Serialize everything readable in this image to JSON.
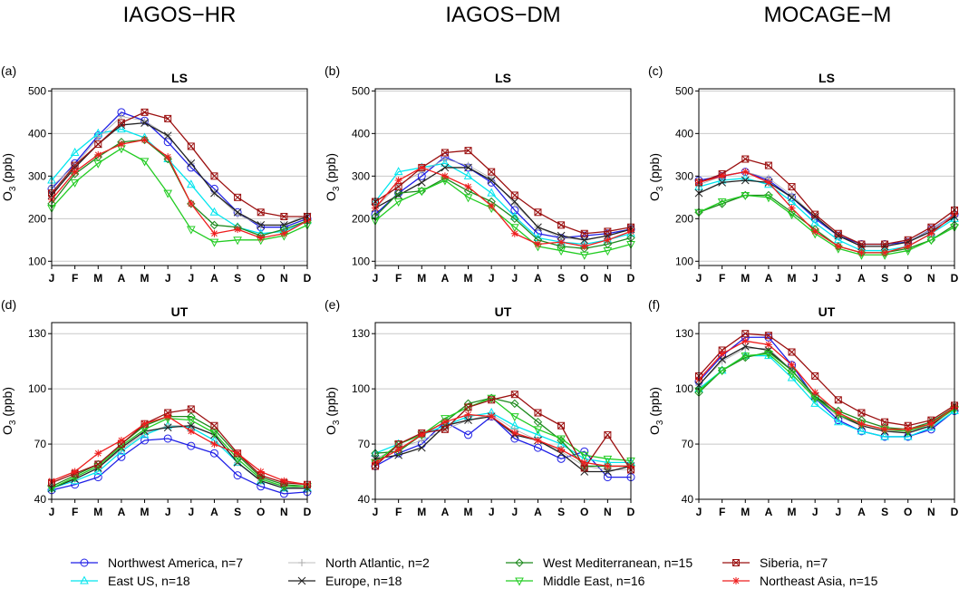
{
  "column_titles": [
    "IAGOS−HR",
    "IAGOS−DM",
    "MOCAGE−M"
  ],
  "legend": [
    {
      "key": "nwa",
      "label": "Northwest America, n=7",
      "color": "#1f1fe6",
      "marker": "circle"
    },
    {
      "key": "eus",
      "label": "East US, n=18",
      "color": "#00e5ee",
      "marker": "triangle-up"
    },
    {
      "key": "nat",
      "label": "North Atlantic, n=2",
      "color": "#aaaaaa",
      "marker": "plus"
    },
    {
      "key": "eur",
      "label": "Europe, n=18",
      "color": "#222222",
      "marker": "x"
    },
    {
      "key": "wmed",
      "label": "West Mediterranean, n=15",
      "color": "#1e8a1e",
      "marker": "diamond"
    },
    {
      "key": "mde",
      "label": "Middle East, n=16",
      "color": "#22cc22",
      "marker": "triangle-down"
    },
    {
      "key": "sib",
      "label": "Siberia, n=7",
      "color": "#9b1010",
      "marker": "square-x"
    },
    {
      "key": "nea",
      "label": "Northeast Asia, n=15",
      "color": "#ee1c1c",
      "marker": "star"
    }
  ],
  "chart_data": [
    {
      "type": "line",
      "panel": "(a)",
      "title": "LS",
      "ylabel": "O3 (ppb)",
      "ylabel_main": "O",
      "ylabel_sub": "3",
      "ylabel_rest": " (ppb)",
      "x": [
        "J",
        "F",
        "M",
        "A",
        "M",
        "J",
        "J",
        "A",
        "S",
        "O",
        "N",
        "D"
      ],
      "ylim": [
        90,
        505
      ],
      "yticks": [
        100,
        200,
        300,
        400,
        500
      ],
      "series": [
        {
          "key": "nwa",
          "values": [
            270,
            330,
            395,
            450,
            430,
            380,
            320,
            270,
            215,
            180,
            180,
            200
          ]
        },
        {
          "key": "eus",
          "values": [
            290,
            355,
            400,
            410,
            390,
            340,
            280,
            215,
            180,
            165,
            170,
            195
          ]
        },
        {
          "key": "nat",
          "values": [
            275,
            325,
            390,
            440,
            430,
            395,
            330,
            260,
            210,
            185,
            185,
            210
          ]
        },
        {
          "key": "eur",
          "values": [
            255,
            320,
            375,
            420,
            425,
            395,
            330,
            260,
            215,
            185,
            185,
            205
          ]
        },
        {
          "key": "wmed",
          "values": [
            235,
            305,
            345,
            380,
            385,
            340,
            235,
            185,
            180,
            160,
            175,
            195
          ]
        },
        {
          "key": "mde",
          "values": [
            225,
            285,
            330,
            365,
            335,
            260,
            175,
            145,
            150,
            150,
            160,
            185
          ]
        },
        {
          "key": "sib",
          "values": [
            260,
            325,
            375,
            425,
            450,
            435,
            370,
            300,
            250,
            215,
            205,
            205
          ]
        },
        {
          "key": "nea",
          "values": [
            245,
            310,
            350,
            375,
            385,
            345,
            235,
            165,
            175,
            155,
            165,
            195
          ]
        }
      ]
    },
    {
      "type": "line",
      "panel": "(b)",
      "title": "LS",
      "ylabel": "O3 (ppb)",
      "ylabel_main": "O",
      "ylabel_sub": "3",
      "ylabel_rest": " (ppb)",
      "x": [
        "J",
        "F",
        "M",
        "A",
        "M",
        "J",
        "J",
        "A",
        "S",
        "O",
        "N",
        "D"
      ],
      "ylim": [
        90,
        505
      ],
      "yticks": [
        100,
        200,
        300,
        400,
        500
      ],
      "series": [
        {
          "key": "nwa",
          "values": [
            210,
            260,
            300,
            345,
            320,
            285,
            220,
            165,
            155,
            160,
            165,
            175
          ]
        },
        {
          "key": "eus",
          "values": [
            240,
            310,
            320,
            330,
            300,
            260,
            205,
            155,
            145,
            140,
            150,
            165
          ]
        },
        {
          "key": "nat",
          "values": [
            225,
            280,
            310,
            340,
            325,
            295,
            235,
            180,
            155,
            150,
            160,
            175
          ]
        },
        {
          "key": "eur",
          "values": [
            225,
            255,
            285,
            320,
            320,
            290,
            240,
            180,
            160,
            150,
            160,
            175
          ]
        },
        {
          "key": "wmed",
          "values": [
            205,
            260,
            265,
            295,
            265,
            240,
            200,
            150,
            135,
            130,
            140,
            155
          ]
        },
        {
          "key": "mde",
          "values": [
            195,
            240,
            265,
            290,
            250,
            225,
            180,
            135,
            125,
            115,
            125,
            140
          ]
        },
        {
          "key": "sib",
          "values": [
            240,
            275,
            320,
            355,
            360,
            310,
            255,
            215,
            185,
            165,
            170,
            180
          ]
        },
        {
          "key": "nea",
          "values": [
            225,
            290,
            320,
            300,
            275,
            230,
            165,
            140,
            145,
            135,
            150,
            170
          ]
        }
      ]
    },
    {
      "type": "line",
      "panel": "(c)",
      "title": "LS",
      "ylabel": "O3 (ppb)",
      "ylabel_main": "O",
      "ylabel_sub": "3",
      "ylabel_rest": " (ppb)",
      "x": [
        "J",
        "F",
        "M",
        "A",
        "M",
        "J",
        "J",
        "A",
        "S",
        "O",
        "N",
        "D"
      ],
      "ylim": [
        90,
        505
      ],
      "yticks": [
        100,
        200,
        300,
        400,
        500
      ],
      "series": [
        {
          "key": "nwa",
          "values": [
            290,
            300,
            310,
            290,
            250,
            200,
            160,
            140,
            140,
            145,
            175,
            210
          ]
        },
        {
          "key": "eus",
          "values": [
            275,
            290,
            295,
            280,
            240,
            190,
            150,
            125,
            125,
            135,
            165,
            200
          ]
        },
        {
          "key": "nat",
          "values": [
            280,
            300,
            310,
            295,
            255,
            205,
            160,
            135,
            135,
            145,
            175,
            210
          ]
        },
        {
          "key": "eur",
          "values": [
            260,
            285,
            290,
            285,
            250,
            205,
            160,
            135,
            135,
            145,
            170,
            205
          ]
        },
        {
          "key": "wmed",
          "values": [
            215,
            235,
            255,
            255,
            215,
            175,
            135,
            120,
            120,
            130,
            150,
            185
          ]
        },
        {
          "key": "mde",
          "values": [
            215,
            240,
            255,
            250,
            210,
            165,
            130,
            115,
            115,
            125,
            150,
            180
          ]
        },
        {
          "key": "sib",
          "values": [
            285,
            305,
            340,
            325,
            275,
            210,
            165,
            140,
            140,
            150,
            180,
            220
          ]
        },
        {
          "key": "nea",
          "values": [
            285,
            300,
            310,
            285,
            225,
            170,
            135,
            120,
            120,
            135,
            165,
            210
          ]
        }
      ]
    },
    {
      "type": "line",
      "panel": "(d)",
      "title": "UT",
      "ylabel": "O3 (ppb)",
      "ylabel_main": "O",
      "ylabel_sub": "3",
      "ylabel_rest": " (ppb)",
      "x": [
        "J",
        "F",
        "M",
        "A",
        "M",
        "J",
        "J",
        "A",
        "S",
        "O",
        "N",
        "D"
      ],
      "ylim": [
        40,
        136
      ],
      "yticks": [
        40,
        70,
        100,
        130
      ],
      "series": [
        {
          "key": "nwa",
          "values": [
            45,
            48,
            52,
            63,
            72,
            73,
            69,
            65,
            53,
            47,
            43,
            44
          ]
        },
        {
          "key": "eus",
          "values": [
            46,
            50,
            55,
            66,
            75,
            80,
            79,
            72,
            60,
            50,
            46,
            46
          ]
        },
        {
          "key": "nat",
          "values": [
            46,
            51,
            57,
            67,
            76,
            80,
            80,
            75,
            60,
            50,
            47,
            46
          ]
        },
        {
          "key": "eur",
          "values": [
            46,
            51,
            57,
            68,
            77,
            79,
            80,
            75,
            60,
            50,
            46,
            46
          ]
        },
        {
          "key": "wmed",
          "values": [
            47,
            53,
            59,
            70,
            80,
            85,
            85,
            78,
            64,
            52,
            48,
            47
          ]
        },
        {
          "key": "mde",
          "values": [
            46,
            52,
            58,
            69,
            78,
            84,
            83,
            76,
            62,
            51,
            47,
            47
          ]
        },
        {
          "key": "sib",
          "values": [
            49,
            54,
            59,
            70,
            81,
            87,
            89,
            80,
            65,
            53,
            49,
            48
          ]
        },
        {
          "key": "nea",
          "values": [
            50,
            55,
            65,
            72,
            81,
            85,
            77,
            70,
            65,
            55,
            50,
            48
          ]
        }
      ]
    },
    {
      "type": "line",
      "panel": "(e)",
      "title": "UT",
      "ylabel": "O3 (ppb)",
      "ylabel_main": "O",
      "ylabel_sub": "3",
      "ylabel_rest": " (ppb)",
      "x": [
        "J",
        "F",
        "M",
        "A",
        "M",
        "J",
        "J",
        "A",
        "S",
        "O",
        "N",
        "D"
      ],
      "ylim": [
        40,
        136
      ],
      "yticks": [
        40,
        70,
        100,
        130
      ],
      "series": [
        {
          "key": "nwa",
          "values": [
            58,
            65,
            70,
            82,
            75,
            85,
            73,
            68,
            62,
            66,
            52,
            52
          ]
        },
        {
          "key": "eus",
          "values": [
            65,
            70,
            75,
            80,
            85,
            87,
            80,
            75,
            70,
            62,
            60,
            60
          ]
        },
        {
          "key": "nat",
          "values": [
            62,
            68,
            72,
            78,
            83,
            86,
            78,
            72,
            66,
            58,
            56,
            56
          ]
        },
        {
          "key": "eur",
          "values": [
            62,
            64,
            68,
            80,
            83,
            85,
            75,
            72,
            65,
            55,
            55,
            58
          ]
        },
        {
          "key": "wmed",
          "values": [
            65,
            66,
            75,
            82,
            92,
            95,
            92,
            82,
            72,
            58,
            58,
            58
          ]
        },
        {
          "key": "mde",
          "values": [
            60,
            70,
            75,
            84,
            90,
            95,
            85,
            78,
            73,
            64,
            62,
            61
          ]
        },
        {
          "key": "sib",
          "values": [
            58,
            70,
            76,
            78,
            90,
            94,
            97,
            87,
            80,
            57,
            75,
            56
          ]
        },
        {
          "key": "nea",
          "values": [
            60,
            67,
            75,
            82,
            86,
            85,
            76,
            72,
            67,
            60,
            58,
            58
          ]
        }
      ]
    },
    {
      "type": "line",
      "panel": "(f)",
      "title": "UT",
      "ylabel": "O3 (ppb)",
      "ylabel_main": "O",
      "ylabel_sub": "3",
      "ylabel_rest": " (ppb)",
      "x": [
        "J",
        "F",
        "M",
        "A",
        "M",
        "J",
        "J",
        "A",
        "S",
        "O",
        "N",
        "D"
      ],
      "ylim": [
        40,
        136
      ],
      "yticks": [
        40,
        70,
        100,
        130
      ],
      "series": [
        {
          "key": "nwa",
          "values": [
            104,
            118,
            128,
            128,
            113,
            95,
            83,
            77,
            74,
            74,
            78,
            88
          ]
        },
        {
          "key": "eus",
          "values": [
            100,
            110,
            118,
            118,
            106,
            92,
            82,
            77,
            74,
            74,
            79,
            88
          ]
        },
        {
          "key": "nat",
          "values": [
            102,
            115,
            122,
            122,
            110,
            95,
            85,
            80,
            77,
            77,
            80,
            89
          ]
        },
        {
          "key": "eur",
          "values": [
            102,
            116,
            123,
            121,
            110,
            96,
            86,
            80,
            77,
            76,
            80,
            90
          ]
        },
        {
          "key": "wmed",
          "values": [
            98,
            110,
            117,
            120,
            110,
            96,
            88,
            83,
            79,
            78,
            82,
            90
          ]
        },
        {
          "key": "mde",
          "values": [
            99,
            110,
            118,
            119,
            108,
            95,
            86,
            81,
            78,
            77,
            81,
            89
          ]
        },
        {
          "key": "sib",
          "values": [
            107,
            121,
            130,
            129,
            120,
            107,
            94,
            87,
            82,
            80,
            83,
            91
          ]
        },
        {
          "key": "nea",
          "values": [
            105,
            119,
            126,
            124,
            113,
            98,
            87,
            81,
            78,
            78,
            81,
            90
          ]
        }
      ]
    }
  ]
}
